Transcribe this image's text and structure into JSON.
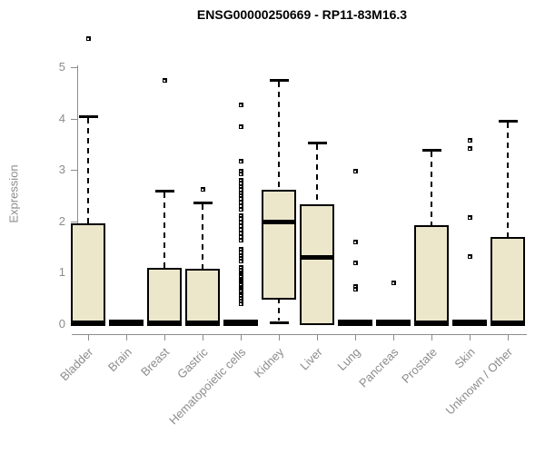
{
  "title": "ENSG00000250669 - RP11-83M16.3",
  "colors": {
    "box_fill": "#ece6cb",
    "box_border": "#000000",
    "axis": "#8c8c8c",
    "tick_label": "#8c8c8c",
    "title": "#000000"
  },
  "chart_data": {
    "type": "box",
    "title": "ENSG00000250669 - RP11-83M16.3",
    "xlabel": "",
    "ylabel": "Expression",
    "ylim": [
      0,
      5.7
    ],
    "yticks": [
      0,
      1,
      2,
      3,
      4,
      5
    ],
    "grid": false,
    "legend": false,
    "categories": [
      "Bladder",
      "Brain",
      "Breast",
      "Gastric",
      "Hematopoietic cells",
      "Kidney",
      "Liver",
      "Lung",
      "Pancreas",
      "Prostate",
      "Skin",
      "Unknown / Other"
    ],
    "series": [
      {
        "label": "Bladder",
        "whisker_low": 0,
        "q1": 0,
        "median": 0.03,
        "q3": 1.92,
        "whisker_high": 4.05,
        "outliers": [
          5.55
        ]
      },
      {
        "label": "Brain",
        "whisker_low": 0,
        "q1": 0,
        "median": 0.02,
        "q3": 0.04,
        "whisker_high": 0.04,
        "outliers": []
      },
      {
        "label": "Breast",
        "whisker_low": 0,
        "q1": 0,
        "median": 0.03,
        "q3": 1.06,
        "whisker_high": 2.6,
        "outliers": [
          4.75
        ]
      },
      {
        "label": "Gastric",
        "whisker_low": 0,
        "q1": 0,
        "median": 0.03,
        "q3": 1.04,
        "whisker_high": 2.37,
        "outliers": [
          2.63
        ]
      },
      {
        "label": "Hematopoietic cells",
        "whisker_low": 0,
        "q1": 0,
        "median": 0.02,
        "q3": 0.04,
        "whisker_high": 0.04,
        "outliers": [
          4.26,
          3.85,
          3.18,
          2.97,
          2.93,
          2.8,
          2.74,
          2.68,
          2.62,
          2.56,
          2.5,
          2.44,
          2.38,
          2.3,
          2.24,
          2.12,
          2.05,
          1.98,
          1.91,
          1.84,
          1.77,
          1.7,
          1.63,
          1.45,
          1.4,
          1.34,
          1.28,
          1.22,
          1.1,
          1.05,
          1.0,
          0.96,
          0.92,
          0.88,
          0.84,
          0.8,
          0.76,
          0.72,
          0.68,
          0.64,
          0.6,
          0.55,
          0.5,
          0.45,
          0.4
        ]
      },
      {
        "label": "Kidney",
        "whisker_low": 0.03,
        "q1": 0.52,
        "median": 1.98,
        "q3": 2.58,
        "whisker_high": 4.76,
        "outliers": []
      },
      {
        "label": "Liver",
        "whisker_low": 0.02,
        "q1": 0.02,
        "median": 1.29,
        "q3": 2.3,
        "whisker_high": 3.54,
        "outliers": []
      },
      {
        "label": "Lung",
        "whisker_low": 0,
        "q1": 0,
        "median": 0.02,
        "q3": 0.04,
        "whisker_high": 0.04,
        "outliers": [
          2.97,
          1.6,
          1.19,
          0.73,
          0.68
        ]
      },
      {
        "label": "Pancreas",
        "whisker_low": 0,
        "q1": 0,
        "median": 0.02,
        "q3": 0.04,
        "whisker_high": 0.04,
        "outliers": [
          0.8
        ]
      },
      {
        "label": "Prostate",
        "whisker_low": 0,
        "q1": 0,
        "median": 0.03,
        "q3": 1.89,
        "whisker_high": 3.4,
        "outliers": []
      },
      {
        "label": "Skin",
        "whisker_low": 0,
        "q1": 0,
        "median": 0.02,
        "q3": 0.04,
        "whisker_high": 0.04,
        "outliers": [
          3.58,
          3.42,
          2.07,
          1.31
        ]
      },
      {
        "label": "Unknown / Other",
        "whisker_low": 0,
        "q1": 0,
        "median": 0.03,
        "q3": 1.66,
        "whisker_high": 3.96,
        "outliers": []
      }
    ]
  }
}
